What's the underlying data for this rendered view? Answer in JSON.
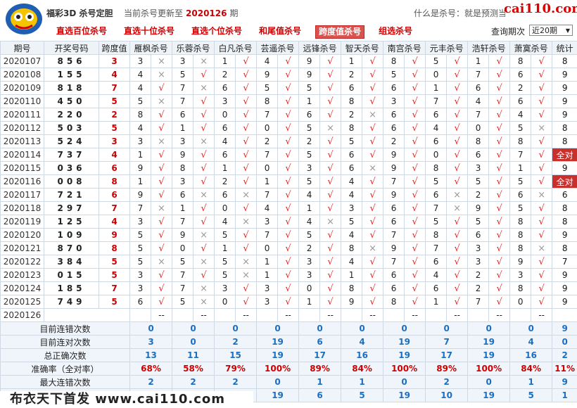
{
  "brand": "福彩3D 杀号定胆",
  "update_label": "当前杀号更新至",
  "update_issue": "2020126",
  "update_suffix": "期",
  "what_is": "什么是杀号：就是预测当",
  "site": "cai110.com",
  "nav": [
    "直选百位杀号",
    "直选十位杀号",
    "直选个位杀号",
    "和尾值杀号",
    "跨度值杀号",
    "组选杀号"
  ],
  "nav_active": 4,
  "query_label": "查询期次",
  "query_value": "近20期",
  "headers": [
    "期号",
    "开奖号码",
    "跨度值",
    "雁枫杀号",
    "乐蓉杀号",
    "白凡杀号",
    "芸遥杀号",
    "远锋杀号",
    "智天杀号",
    "南宫杀号",
    "元丰杀号",
    "浩轩杀号",
    "萧寞杀号",
    "统计"
  ],
  "rows": [
    {
      "issue": "2020107",
      "num": "856",
      "kd": "3",
      "kills": [
        [
          "3",
          "no"
        ],
        [
          "3",
          "no"
        ],
        [
          "1",
          "ok"
        ],
        [
          "4",
          "ok"
        ],
        [
          "9",
          "ok"
        ],
        [
          "1",
          "ok"
        ],
        [
          "8",
          "ok"
        ],
        [
          "5",
          "ok"
        ],
        [
          "1",
          "ok"
        ],
        [
          "8",
          "ok"
        ]
      ],
      "stat": "8",
      "all": false
    },
    {
      "issue": "2020108",
      "num": "155",
      "kd": "4",
      "kills": [
        [
          "4",
          "no"
        ],
        [
          "5",
          "ok"
        ],
        [
          "2",
          "ok"
        ],
        [
          "9",
          "ok"
        ],
        [
          "9",
          "ok"
        ],
        [
          "2",
          "ok"
        ],
        [
          "5",
          "ok"
        ],
        [
          "0",
          "ok"
        ],
        [
          "7",
          "ok"
        ],
        [
          "6",
          "ok"
        ]
      ],
      "stat": "9",
      "all": false
    },
    {
      "issue": "2020109",
      "num": "818",
      "kd": "7",
      "kills": [
        [
          "4",
          "ok"
        ],
        [
          "7",
          "no"
        ],
        [
          "6",
          "ok"
        ],
        [
          "5",
          "ok"
        ],
        [
          "5",
          "ok"
        ],
        [
          "6",
          "ok"
        ],
        [
          "6",
          "ok"
        ],
        [
          "1",
          "ok"
        ],
        [
          "6",
          "ok"
        ],
        [
          "2",
          "ok"
        ]
      ],
      "stat": "9",
      "all": false
    },
    {
      "issue": "2020110",
      "num": "450",
      "kd": "5",
      "kills": [
        [
          "5",
          "no"
        ],
        [
          "7",
          "ok"
        ],
        [
          "3",
          "ok"
        ],
        [
          "8",
          "ok"
        ],
        [
          "1",
          "ok"
        ],
        [
          "8",
          "ok"
        ],
        [
          "3",
          "ok"
        ],
        [
          "7",
          "ok"
        ],
        [
          "4",
          "ok"
        ],
        [
          "6",
          "ok"
        ]
      ],
      "stat": "9",
      "all": false
    },
    {
      "issue": "2020111",
      "num": "220",
      "kd": "2",
      "kills": [
        [
          "8",
          "ok"
        ],
        [
          "6",
          "ok"
        ],
        [
          "0",
          "ok"
        ],
        [
          "7",
          "ok"
        ],
        [
          "6",
          "ok"
        ],
        [
          "2",
          "no"
        ],
        [
          "6",
          "ok"
        ],
        [
          "6",
          "ok"
        ],
        [
          "7",
          "ok"
        ],
        [
          "4",
          "ok"
        ]
      ],
      "stat": "9",
      "all": false
    },
    {
      "issue": "2020112",
      "num": "503",
      "kd": "5",
      "kills": [
        [
          "4",
          "ok"
        ],
        [
          "1",
          "ok"
        ],
        [
          "6",
          "ok"
        ],
        [
          "0",
          "ok"
        ],
        [
          "5",
          "no"
        ],
        [
          "8",
          "ok"
        ],
        [
          "6",
          "ok"
        ],
        [
          "4",
          "ok"
        ],
        [
          "0",
          "ok"
        ],
        [
          "5",
          "no"
        ]
      ],
      "stat": "8",
      "all": false
    },
    {
      "issue": "2020113",
      "num": "524",
      "kd": "3",
      "kills": [
        [
          "3",
          "no"
        ],
        [
          "3",
          "no"
        ],
        [
          "4",
          "ok"
        ],
        [
          "2",
          "ok"
        ],
        [
          "2",
          "ok"
        ],
        [
          "5",
          "ok"
        ],
        [
          "2",
          "ok"
        ],
        [
          "6",
          "ok"
        ],
        [
          "8",
          "ok"
        ],
        [
          "8",
          "ok"
        ]
      ],
      "stat": "8",
      "all": false
    },
    {
      "issue": "2020114",
      "num": "737",
      "kd": "4",
      "kills": [
        [
          "1",
          "ok"
        ],
        [
          "9",
          "ok"
        ],
        [
          "6",
          "ok"
        ],
        [
          "7",
          "ok"
        ],
        [
          "5",
          "ok"
        ],
        [
          "6",
          "ok"
        ],
        [
          "9",
          "ok"
        ],
        [
          "0",
          "ok"
        ],
        [
          "6",
          "ok"
        ],
        [
          "7",
          "ok"
        ]
      ],
      "stat": "全对",
      "all": true
    },
    {
      "issue": "2020115",
      "num": "036",
      "kd": "6",
      "kills": [
        [
          "9",
          "ok"
        ],
        [
          "8",
          "ok"
        ],
        [
          "1",
          "ok"
        ],
        [
          "0",
          "ok"
        ],
        [
          "3",
          "ok"
        ],
        [
          "6",
          "no"
        ],
        [
          "9",
          "ok"
        ],
        [
          "8",
          "ok"
        ],
        [
          "3",
          "ok"
        ],
        [
          "1",
          "ok"
        ]
      ],
      "stat": "9",
      "all": false
    },
    {
      "issue": "2020116",
      "num": "008",
      "kd": "8",
      "kills": [
        [
          "1",
          "ok"
        ],
        [
          "3",
          "ok"
        ],
        [
          "2",
          "ok"
        ],
        [
          "1",
          "ok"
        ],
        [
          "5",
          "ok"
        ],
        [
          "4",
          "ok"
        ],
        [
          "7",
          "ok"
        ],
        [
          "5",
          "ok"
        ],
        [
          "5",
          "ok"
        ],
        [
          "5",
          "ok"
        ]
      ],
      "stat": "全对",
      "all": true
    },
    {
      "issue": "2020117",
      "num": "721",
      "kd": "6",
      "kills": [
        [
          "9",
          "ok"
        ],
        [
          "6",
          "no"
        ],
        [
          "6",
          "no"
        ],
        [
          "7",
          "ok"
        ],
        [
          "4",
          "ok"
        ],
        [
          "4",
          "ok"
        ],
        [
          "9",
          "ok"
        ],
        [
          "6",
          "no"
        ],
        [
          "2",
          "ok"
        ],
        [
          "6",
          "no"
        ]
      ],
      "stat": "6",
      "all": false
    },
    {
      "issue": "2020118",
      "num": "297",
      "kd": "7",
      "kills": [
        [
          "7",
          "no"
        ],
        [
          "1",
          "ok"
        ],
        [
          "0",
          "ok"
        ],
        [
          "4",
          "ok"
        ],
        [
          "1",
          "ok"
        ],
        [
          "3",
          "ok"
        ],
        [
          "6",
          "ok"
        ],
        [
          "7",
          "no"
        ],
        [
          "9",
          "ok"
        ],
        [
          "5",
          "ok"
        ]
      ],
      "stat": "8",
      "all": false
    },
    {
      "issue": "2020119",
      "num": "125",
      "kd": "4",
      "kills": [
        [
          "3",
          "ok"
        ],
        [
          "7",
          "ok"
        ],
        [
          "4",
          "no"
        ],
        [
          "3",
          "ok"
        ],
        [
          "4",
          "no"
        ],
        [
          "5",
          "ok"
        ],
        [
          "6",
          "ok"
        ],
        [
          "5",
          "ok"
        ],
        [
          "5",
          "ok"
        ],
        [
          "8",
          "ok"
        ]
      ],
      "stat": "8",
      "all": false
    },
    {
      "issue": "2020120",
      "num": "109",
      "kd": "9",
      "kills": [
        [
          "5",
          "ok"
        ],
        [
          "9",
          "no"
        ],
        [
          "5",
          "ok"
        ],
        [
          "7",
          "ok"
        ],
        [
          "5",
          "ok"
        ],
        [
          "4",
          "ok"
        ],
        [
          "7",
          "ok"
        ],
        [
          "8",
          "ok"
        ],
        [
          "6",
          "ok"
        ],
        [
          "8",
          "ok"
        ]
      ],
      "stat": "9",
      "all": false
    },
    {
      "issue": "2020121",
      "num": "870",
      "kd": "8",
      "kills": [
        [
          "5",
          "ok"
        ],
        [
          "0",
          "ok"
        ],
        [
          "1",
          "ok"
        ],
        [
          "0",
          "ok"
        ],
        [
          "2",
          "ok"
        ],
        [
          "8",
          "no"
        ],
        [
          "9",
          "ok"
        ],
        [
          "7",
          "ok"
        ],
        [
          "3",
          "ok"
        ],
        [
          "8",
          "no"
        ]
      ],
      "stat": "8",
      "all": false
    },
    {
      "issue": "2020122",
      "num": "384",
      "kd": "5",
      "kills": [
        [
          "5",
          "no"
        ],
        [
          "5",
          "no"
        ],
        [
          "5",
          "no"
        ],
        [
          "1",
          "ok"
        ],
        [
          "3",
          "ok"
        ],
        [
          "4",
          "ok"
        ],
        [
          "7",
          "ok"
        ],
        [
          "6",
          "ok"
        ],
        [
          "3",
          "ok"
        ],
        [
          "9",
          "ok"
        ]
      ],
      "stat": "7",
      "all": false
    },
    {
      "issue": "2020123",
      "num": "015",
      "kd": "5",
      "kills": [
        [
          "3",
          "ok"
        ],
        [
          "7",
          "ok"
        ],
        [
          "5",
          "no"
        ],
        [
          "1",
          "ok"
        ],
        [
          "3",
          "ok"
        ],
        [
          "1",
          "ok"
        ],
        [
          "6",
          "ok"
        ],
        [
          "4",
          "ok"
        ],
        [
          "2",
          "ok"
        ],
        [
          "3",
          "ok"
        ]
      ],
      "stat": "9",
      "all": false
    },
    {
      "issue": "2020124",
      "num": "185",
      "kd": "7",
      "kills": [
        [
          "3",
          "ok"
        ],
        [
          "7",
          "no"
        ],
        [
          "3",
          "ok"
        ],
        [
          "3",
          "ok"
        ],
        [
          "0",
          "ok"
        ],
        [
          "8",
          "ok"
        ],
        [
          "6",
          "ok"
        ],
        [
          "6",
          "ok"
        ],
        [
          "2",
          "ok"
        ],
        [
          "8",
          "ok"
        ]
      ],
      "stat": "9",
      "all": false
    },
    {
      "issue": "2020125",
      "num": "749",
      "kd": "5",
      "kills": [
        [
          "6",
          "ok"
        ],
        [
          "5",
          "no"
        ],
        [
          "0",
          "ok"
        ],
        [
          "3",
          "ok"
        ],
        [
          "1",
          "ok"
        ],
        [
          "9",
          "ok"
        ],
        [
          "8",
          "ok"
        ],
        [
          "1",
          "ok"
        ],
        [
          "7",
          "ok"
        ],
        [
          "0",
          "ok"
        ]
      ],
      "stat": "9",
      "all": false
    }
  ],
  "current": {
    "issue": "2020126",
    "label": "当前期杀号",
    "kills": [
      "1",
      "3",
      "4",
      "1",
      "9",
      "6",
      "6",
      "4",
      "1",
      "7"
    ],
    "blank": "--"
  },
  "ok_mark": "√",
  "no_mark": "×",
  "stats": [
    {
      "label": "目前连错次数",
      "values": [
        "0",
        "0",
        "0",
        "0",
        "0",
        "0",
        "0",
        "0",
        "0",
        "0"
      ],
      "stat": "9"
    },
    {
      "label": "目前连对次数",
      "values": [
        "3",
        "0",
        "2",
        "19",
        "6",
        "4",
        "19",
        "7",
        "19",
        "4"
      ],
      "stat": "0"
    },
    {
      "label": "总正确次数",
      "values": [
        "13",
        "11",
        "15",
        "19",
        "17",
        "16",
        "19",
        "17",
        "19",
        "16"
      ],
      "stat": "2"
    },
    {
      "label": "准确率（全对率）",
      "values": [
        "68%",
        "58%",
        "79%",
        "100%",
        "89%",
        "84%",
        "100%",
        "89%",
        "100%",
        "84%"
      ],
      "stat": "11%",
      "red": true
    },
    {
      "label": "最大连错次数",
      "values": [
        "2",
        "2",
        "2",
        "0",
        "1",
        "1",
        "0",
        "2",
        "0",
        "1"
      ],
      "stat": "9"
    },
    {
      "label": "",
      "values": [
        "",
        "",
        "",
        "19",
        "6",
        "5",
        "19",
        "10",
        "19",
        "5"
      ],
      "stat": "1"
    }
  ],
  "footer": "布衣天下首发 www.cai110.com"
}
